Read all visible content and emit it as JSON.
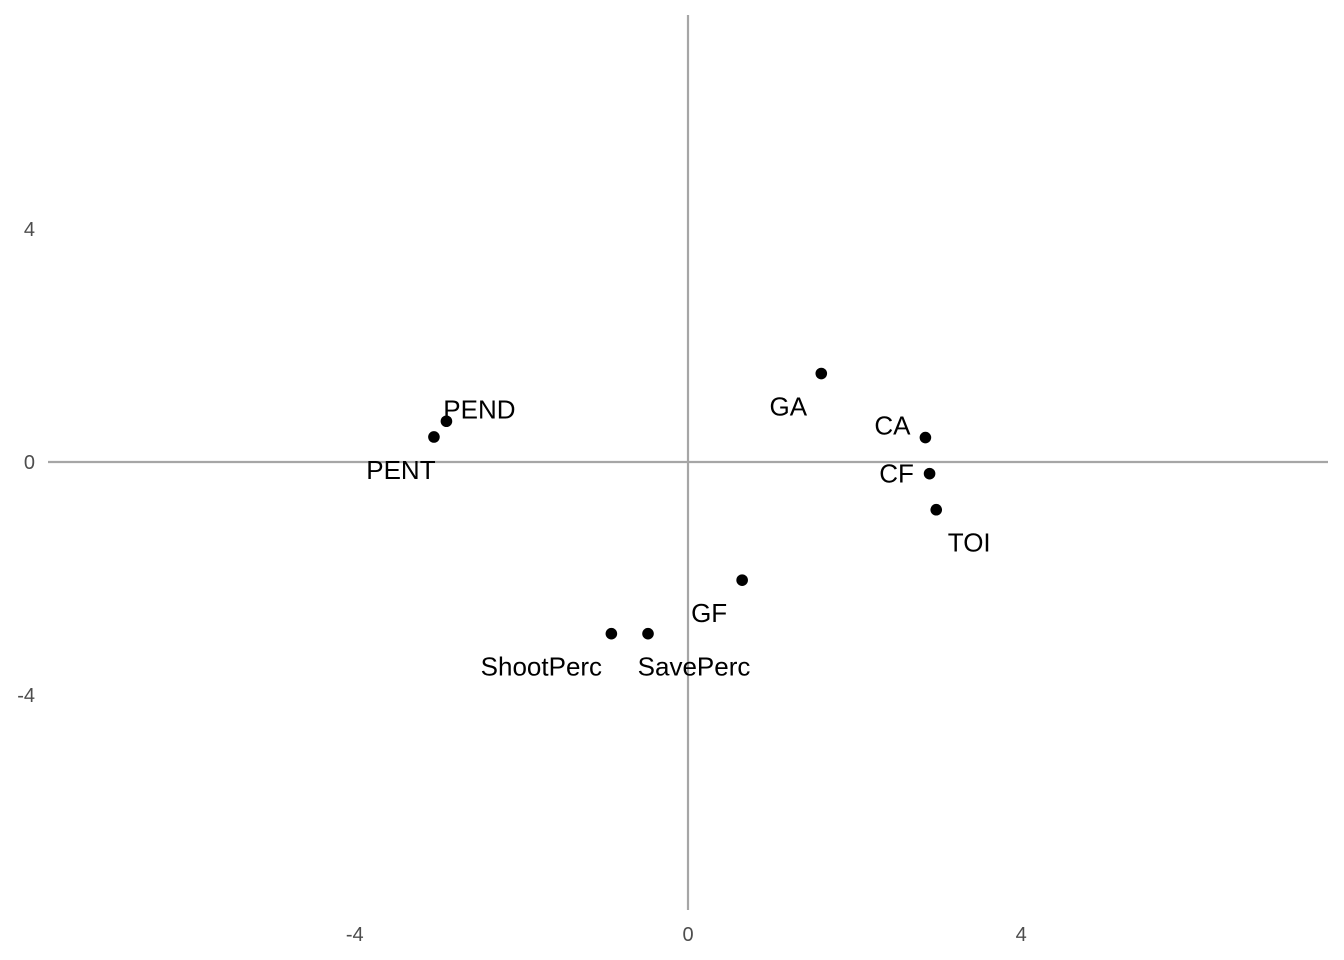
{
  "chart_data": {
    "type": "scatter",
    "title": "",
    "xlabel": "",
    "ylabel": "",
    "xlim": [
      -8,
      8
    ],
    "ylim": [
      -8,
      8
    ],
    "x_ticks": [
      -4,
      0,
      4
    ],
    "y_ticks": [
      4,
      0,
      -4
    ],
    "x_tick_labels": [
      "-4",
      "0",
      "4"
    ],
    "y_tick_labels": [
      "4",
      "0",
      "-4"
    ],
    "grid": false,
    "reference_lines": {
      "x": 0,
      "y": 0
    },
    "colors": {
      "points": "#000000",
      "reference_lines": "#a6a6a6",
      "tick_labels": "#4d4d4d"
    },
    "points": [
      {
        "label": "PEND",
        "x": -2.9,
        "y": 0.7
      },
      {
        "label": "PENT",
        "x": -3.05,
        "y": 0.43
      },
      {
        "label": "GA",
        "x": 1.6,
        "y": 1.52
      },
      {
        "label": "CA",
        "x": 2.85,
        "y": 0.42
      },
      {
        "label": "CF",
        "x": 2.9,
        "y": -0.2
      },
      {
        "label": "TOI",
        "x": 2.98,
        "y": -0.82
      },
      {
        "label": "GF",
        "x": 0.65,
        "y": -2.03
      },
      {
        "label": "ShootPerc",
        "x": -0.92,
        "y": -2.95
      },
      {
        "label": "SavePerc",
        "x": -0.48,
        "y": -2.95
      }
    ]
  }
}
